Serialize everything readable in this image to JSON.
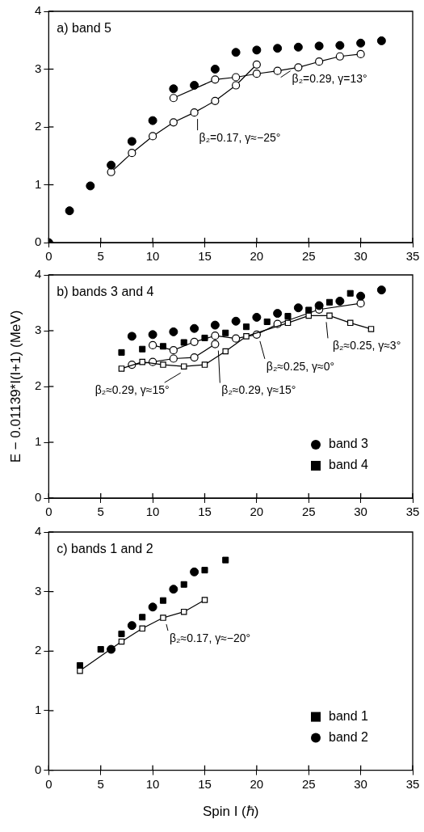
{
  "chart_data": [
    {
      "type": "scatter",
      "title": "a) band 5",
      "xlim": [
        0,
        35
      ],
      "xticks": [
        0,
        5,
        10,
        15,
        20,
        25,
        30,
        35
      ],
      "ylim": [
        0,
        4
      ],
      "yticks": [
        0,
        1,
        2,
        3,
        4
      ],
      "grid": false,
      "legend": false,
      "series": [
        {
          "type": "line",
          "marker": "circle",
          "color": "#000000",
          "x": [
            6,
            8,
            10,
            12,
            14,
            16,
            18,
            20
          ],
          "values": [
            1.22,
            1.55,
            1.84,
            2.08,
            2.25,
            2.45,
            2.72,
            3.08
          ]
        },
        {
          "type": "line",
          "marker": "circle",
          "color": "#000000",
          "x": [
            12,
            14,
            16,
            18,
            20,
            22,
            24,
            26,
            28,
            30
          ],
          "values": [
            2.5,
            null,
            2.82,
            2.86,
            2.92,
            2.97,
            3.03,
            3.13,
            3.22,
            3.26
          ]
        },
        {
          "marker": "circle",
          "color": "#000000",
          "x": [
            0,
            2,
            4,
            6,
            8,
            10,
            12,
            14,
            16,
            18,
            20,
            22,
            24,
            26,
            28,
            30,
            32
          ],
          "values": [
            0,
            0.55,
            0.98,
            1.34,
            1.75,
            2.11,
            2.66,
            2.72,
            3.0,
            3.29,
            3.33,
            3.36,
            3.38,
            3.4,
            3.41,
            3.45,
            3.49
          ]
        }
      ],
      "annotations": [
        {
          "text": "β₂=0.29, γ=13°",
          "x": 22,
          "y": 2.97
        },
        {
          "text": "β₂=0.17, γ≈−25°",
          "x": 14,
          "y": 2.25
        }
      ]
    },
    {
      "type": "scatter",
      "title": "b) bands 3 and 4",
      "ylabel": "E − 0.01139*I(I+1) (MeV)",
      "xlim": [
        0,
        35
      ],
      "xticks": [
        0,
        5,
        10,
        15,
        20,
        25,
        30,
        35
      ],
      "ylim": [
        0,
        4
      ],
      "yticks": [
        0,
        1,
        2,
        3,
        4
      ],
      "grid": false,
      "legend": "bottom right",
      "series": [
        {
          "type": "line",
          "marker": "square",
          "color": "#000000",
          "x": [
            7,
            9,
            11,
            13,
            15,
            17,
            19,
            21,
            23,
            25,
            27,
            29,
            31
          ],
          "values": [
            2.32,
            2.44,
            2.39,
            2.36,
            2.39,
            2.63,
            2.9,
            null,
            3.14,
            3.27,
            3.27,
            3.14,
            3.03
          ]
        },
        {
          "type": "line",
          "marker": "circle",
          "color": "#000000",
          "x": [
            8,
            10,
            12,
            14,
            16
          ],
          "values": [
            2.39,
            2.44,
            2.5,
            2.52,
            2.76
          ]
        },
        {
          "type": "line",
          "marker": "circle",
          "color": "#000000",
          "x": [
            10,
            12,
            14,
            16,
            18,
            20,
            22,
            24,
            26,
            28,
            30
          ],
          "values": [
            2.74,
            2.65,
            2.8,
            2.91,
            2.86,
            2.93,
            3.12,
            null,
            3.38,
            null,
            3.49
          ]
        },
        {
          "name": "band 3",
          "marker": "circle",
          "color": "#000000",
          "x": [
            8,
            10,
            12,
            14,
            16,
            18,
            20,
            22,
            24,
            26,
            28,
            30,
            32
          ],
          "values": [
            2.9,
            2.93,
            2.98,
            3.04,
            3.1,
            3.17,
            3.24,
            3.31,
            3.41,
            3.45,
            3.53,
            3.62,
            3.73
          ]
        },
        {
          "name": "band 4",
          "marker": "square",
          "color": "#000000",
          "x": [
            7,
            9,
            11,
            13,
            15,
            17,
            19,
            21,
            23,
            25,
            27,
            29
          ],
          "values": [
            2.61,
            2.67,
            2.72,
            2.79,
            2.87,
            2.96,
            3.07,
            3.16,
            3.26,
            3.37,
            3.51,
            3.67
          ]
        }
      ],
      "annotations": [
        {
          "text": "β₂≈0.29, γ≈15°",
          "x": 13,
          "y": 2.36
        },
        {
          "text": "β₂≈0.29, γ≈15°",
          "x": 16,
          "y": 2.76
        },
        {
          "text": "β₂≈0.25, γ≈0°",
          "x": 20,
          "y": 2.93
        },
        {
          "text": "β₂≈0.25, γ≈3°",
          "x": 27,
          "y": 3.27
        }
      ]
    },
    {
      "type": "scatter",
      "title": "c) bands 1 and 2",
      "xlabel": "Spin I (ℏ)",
      "xlim": [
        0,
        35
      ],
      "xticks": [
        0,
        5,
        10,
        15,
        20,
        25,
        30,
        35
      ],
      "ylim": [
        0,
        4
      ],
      "yticks": [
        0,
        1,
        2,
        3,
        4
      ],
      "grid": false,
      "legend": "bottom right",
      "series": [
        {
          "type": "line",
          "marker": "square",
          "color": "#000000",
          "x": [
            3,
            5,
            7,
            9,
            11,
            13,
            15
          ],
          "values": [
            1.67,
            null,
            2.16,
            2.38,
            2.56,
            2.66,
            2.86
          ]
        },
        {
          "name": "band 1",
          "marker": "square",
          "color": "#000000",
          "x": [
            3,
            5,
            7,
            9,
            11,
            13,
            15,
            17
          ],
          "values": [
            1.76,
            2.03,
            2.29,
            2.57,
            2.85,
            3.12,
            3.36,
            3.53
          ]
        },
        {
          "name": "band 2",
          "marker": "circle",
          "color": "#000000",
          "x": [
            6,
            8,
            10,
            12,
            14
          ],
          "values": [
            2.03,
            2.43,
            2.74,
            3.04,
            3.33
          ]
        }
      ],
      "annotations": [
        {
          "text": "β₂≈0.17, γ≈−20°",
          "x": 11,
          "y": 2.56
        }
      ]
    }
  ]
}
